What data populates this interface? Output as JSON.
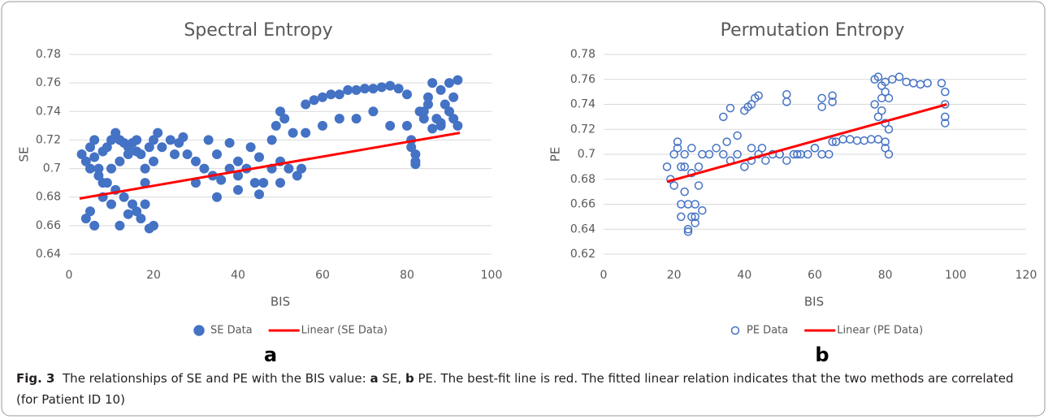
{
  "chart_data": [
    {
      "type": "scatter",
      "title": "Spectral Entropy",
      "x_label": "BIS",
      "y_label": "SE",
      "panel_label": "a",
      "xlim": [
        0,
        100
      ],
      "xticks": [
        0,
        20,
        40,
        60,
        80,
        100
      ],
      "ylim": [
        0.64,
        0.78
      ],
      "yticks": [
        0.64,
        0.66,
        0.68,
        0.7,
        0.72,
        0.74,
        0.76,
        0.78
      ],
      "grid": true,
      "series": [
        {
          "name": "SE Data",
          "color": "#4472c4",
          "marker": "filled",
          "x": [
            3,
            4,
            5,
            5,
            6,
            7,
            8,
            9,
            10,
            11,
            12,
            13,
            14,
            15,
            16,
            17,
            18,
            19,
            20,
            21,
            4,
            6,
            8,
            10,
            12,
            14,
            16,
            18,
            20,
            5,
            7,
            9,
            11,
            13,
            15,
            17,
            19,
            6,
            8,
            10,
            12,
            14,
            16,
            18,
            20,
            22,
            24,
            26,
            28,
            30,
            32,
            34,
            36,
            38,
            40,
            42,
            44,
            46,
            48,
            50,
            52,
            54,
            25,
            30,
            35,
            40,
            45,
            50,
            55,
            27,
            33,
            38,
            43,
            48,
            53,
            35,
            40,
            45,
            49,
            50,
            51,
            56,
            58,
            60,
            62,
            64,
            66,
            68,
            70,
            72,
            74,
            76,
            78,
            80,
            56,
            60,
            64,
            68,
            72,
            76,
            80,
            81,
            82,
            83,
            84,
            85,
            86,
            87,
            88,
            89,
            90,
            91,
            92,
            92,
            82,
            84,
            86,
            88,
            90,
            81,
            82,
            85,
            88,
            91
          ],
          "values": [
            0.71,
            0.705,
            0.67,
            0.715,
            0.72,
            0.7,
            0.69,
            0.715,
            0.72,
            0.725,
            0.72,
            0.718,
            0.715,
            0.718,
            0.72,
            0.71,
            0.7,
            0.715,
            0.72,
            0.725,
            0.665,
            0.66,
            0.68,
            0.675,
            0.66,
            0.668,
            0.67,
            0.675,
            0.66,
            0.7,
            0.695,
            0.69,
            0.685,
            0.68,
            0.675,
            0.665,
            0.658,
            0.708,
            0.712,
            0.7,
            0.705,
            0.71,
            0.712,
            0.69,
            0.705,
            0.715,
            0.72,
            0.718,
            0.71,
            0.705,
            0.7,
            0.695,
            0.692,
            0.7,
            0.695,
            0.7,
            0.69,
            0.69,
            0.7,
            0.705,
            0.7,
            0.695,
            0.71,
            0.69,
            0.68,
            0.685,
            0.682,
            0.69,
            0.7,
            0.722,
            0.72,
            0.718,
            0.715,
            0.72,
            0.725,
            0.71,
            0.705,
            0.708,
            0.73,
            0.74,
            0.735,
            0.745,
            0.748,
            0.75,
            0.752,
            0.752,
            0.755,
            0.755,
            0.756,
            0.756,
            0.757,
            0.758,
            0.756,
            0.752,
            0.725,
            0.73,
            0.735,
            0.735,
            0.74,
            0.73,
            0.73,
            0.72,
            0.71,
            0.74,
            0.735,
            0.745,
            0.76,
            0.735,
            0.73,
            0.745,
            0.76,
            0.75,
            0.73,
            0.762,
            0.705,
            0.74,
            0.728,
            0.732,
            0.74,
            0.715,
            0.703,
            0.75,
            0.755,
            0.735
          ]
        },
        {
          "name": "Linear (SE Data)",
          "color": "#ff0000",
          "marker": "line",
          "x": [
            2.5,
            92.5
          ],
          "values": [
            0.679,
            0.725
          ]
        }
      ]
    },
    {
      "type": "scatter",
      "title": "Permutation Entropy",
      "x_label": "BIS",
      "y_label": "PE",
      "panel_label": "b",
      "xlim": [
        0,
        120
      ],
      "xticks": [
        0,
        20,
        40,
        60,
        80,
        100,
        120
      ],
      "ylim": [
        0.62,
        0.78
      ],
      "yticks": [
        0.62,
        0.64,
        0.66,
        0.68,
        0.7,
        0.72,
        0.74,
        0.76,
        0.78
      ],
      "grid": true,
      "series": [
        {
          "name": "PE Data",
          "color": "#4472c4",
          "marker": "open",
          "x": [
            18,
            19,
            20,
            21,
            22,
            23,
            24,
            25,
            26,
            27,
            28,
            20,
            22,
            24,
            26,
            28,
            21,
            23,
            25,
            27,
            22,
            24,
            26,
            23,
            25,
            30,
            32,
            34,
            36,
            38,
            40,
            42,
            44,
            46,
            48,
            50,
            52,
            54,
            56,
            58,
            60,
            62,
            64,
            66,
            35,
            38,
            42,
            45,
            50,
            55,
            60,
            65,
            34,
            36,
            40,
            41,
            42,
            43,
            44,
            52,
            52,
            62,
            62,
            65,
            65,
            68,
            70,
            72,
            74,
            76,
            77,
            78,
            79,
            80,
            81,
            77,
            78,
            79,
            80,
            81,
            78,
            80,
            82,
            84,
            80,
            81,
            86,
            88,
            90,
            92,
            96,
            97,
            97,
            97,
            97,
            79,
            80
          ],
          "values": [
            0.69,
            0.68,
            0.7,
            0.705,
            0.69,
            0.67,
            0.66,
            0.65,
            0.66,
            0.675,
            0.7,
            0.675,
            0.66,
            0.64,
            0.645,
            0.655,
            0.71,
            0.69,
            0.685,
            0.69,
            0.65,
            0.638,
            0.65,
            0.7,
            0.705,
            0.7,
            0.705,
            0.7,
            0.695,
            0.7,
            0.69,
            0.695,
            0.7,
            0.695,
            0.7,
            0.7,
            0.695,
            0.7,
            0.7,
            0.7,
            0.705,
            0.7,
            0.7,
            0.71,
            0.71,
            0.715,
            0.705,
            0.705,
            0.7,
            0.7,
            0.705,
            0.71,
            0.73,
            0.737,
            0.735,
            0.738,
            0.74,
            0.745,
            0.747,
            0.748,
            0.742,
            0.745,
            0.738,
            0.747,
            0.742,
            0.712,
            0.712,
            0.711,
            0.711,
            0.712,
            0.76,
            0.762,
            0.755,
            0.758,
            0.745,
            0.74,
            0.73,
            0.735,
            0.725,
            0.72,
            0.712,
            0.71,
            0.76,
            0.762,
            0.705,
            0.7,
            0.758,
            0.757,
            0.756,
            0.757,
            0.757,
            0.75,
            0.74,
            0.73,
            0.725,
            0.745,
            0.75
          ]
        },
        {
          "name": "Linear (PE Data)",
          "color": "#ff0000",
          "marker": "line",
          "x": [
            18,
            97.5
          ],
          "values": [
            0.678,
            0.74
          ]
        }
      ]
    }
  ],
  "caption": [
    {
      "text": "Fig. 3",
      "bold": true
    },
    {
      "text": "  The relationships of SE and PE with the BIS value: ",
      "bold": false
    },
    {
      "text": "a",
      "bold": true
    },
    {
      "text": " SE, ",
      "bold": false
    },
    {
      "text": "b",
      "bold": true
    },
    {
      "text": " PE. The best-fit line is red. The fitted linear relation indicates that the two methods are correlated (for Patient ID 10)",
      "bold": false
    }
  ]
}
